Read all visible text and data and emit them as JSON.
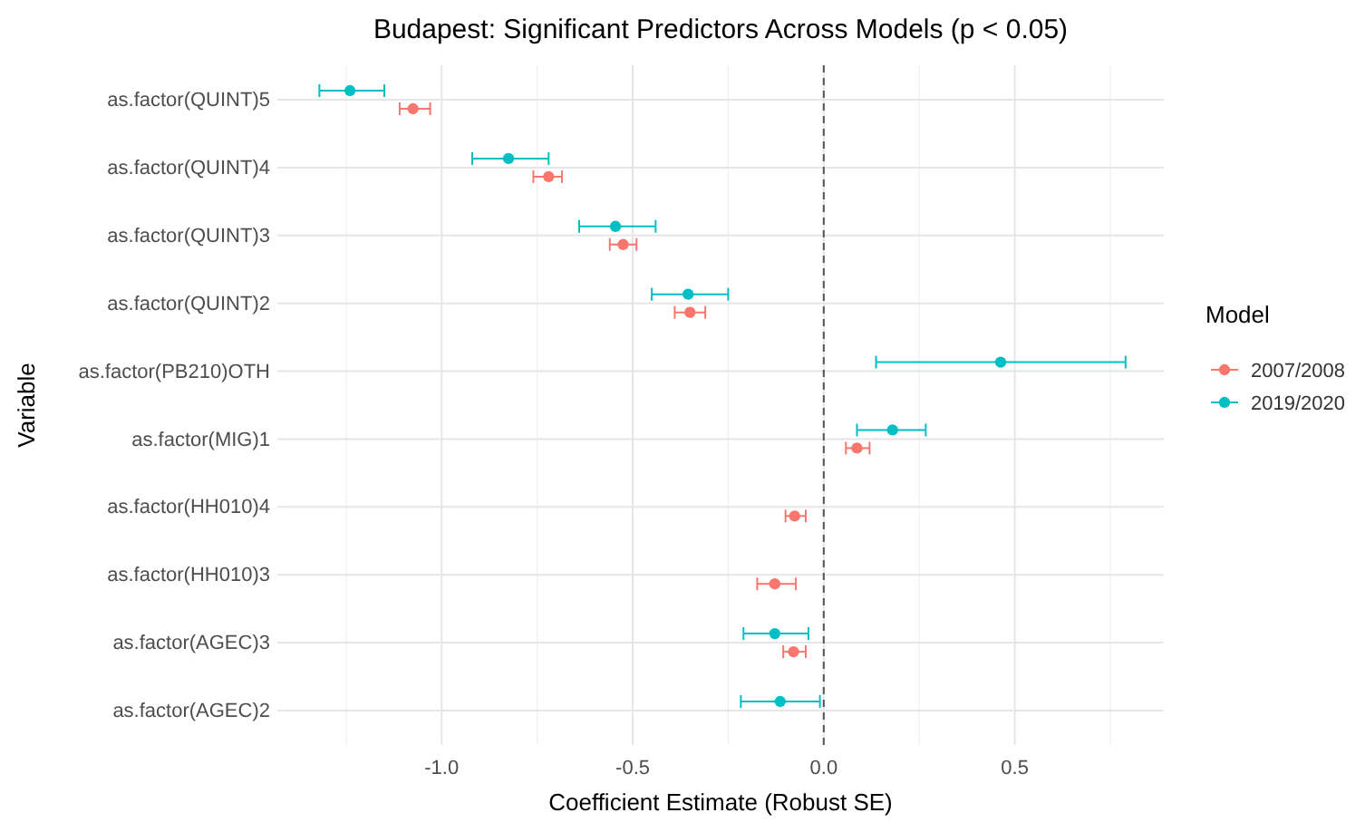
{
  "chart_data": {
    "type": "scatter",
    "orientation": "horizontal",
    "title": "Budapest: Significant Predictors Across Models (p < 0.05)",
    "xlabel": "Coefficient Estimate (Robust SE)",
    "ylabel": "Variable",
    "legend_title": "Model",
    "legend": "right",
    "grid": true,
    "marker": "circle",
    "categories": [
      "as.factor(QUINT)5",
      "as.factor(QUINT)4",
      "as.factor(QUINT)3",
      "as.factor(QUINT)2",
      "as.factor(PB210)OTH",
      "as.factor(MIG)1",
      "as.factor(HH010)4",
      "as.factor(HH010)3",
      "as.factor(AGEC)3",
      "as.factor(AGEC)2"
    ],
    "xlim": [
      -1.43,
      0.89
    ],
    "xticks": [
      {
        "value": -1,
        "label": "-1.0"
      },
      -0.5,
      {
        "value": 0,
        "label": "0.0"
      },
      0.5
    ],
    "ref_lines": [
      {
        "axis": "x",
        "value": 0,
        "line_style": "dashed",
        "color": "#555555"
      }
    ],
    "series": [
      {
        "name": "2007/2008",
        "color": "#f8766d",
        "values": [
          -1.075,
          -0.72,
          -0.525,
          -0.35,
          null,
          0.087,
          -0.076,
          -0.128,
          -0.079,
          null
        ],
        "errors": [
          [
            -1.11,
            -1.03
          ],
          [
            -0.76,
            -0.685
          ],
          [
            -0.56,
            -0.49
          ],
          [
            -0.39,
            -0.31
          ],
          null,
          [
            0.058,
            0.12
          ],
          [
            -0.1,
            -0.047
          ],
          [
            -0.174,
            -0.073
          ],
          [
            -0.106,
            -0.047
          ],
          null
        ]
      },
      {
        "name": "2019/2020",
        "color": "#00bfc4",
        "values": [
          -1.24,
          -0.825,
          -0.545,
          -0.355,
          0.463,
          0.18,
          null,
          null,
          -0.128,
          -0.114
        ],
        "errors": [
          [
            -1.32,
            -1.15
          ],
          [
            -0.92,
            -0.72
          ],
          [
            -0.64,
            -0.44
          ],
          [
            -0.45,
            -0.25
          ],
          [
            0.137,
            0.79
          ],
          [
            0.087,
            0.267
          ],
          null,
          null,
          [
            -0.21,
            -0.04
          ],
          [
            -0.217,
            -0.01
          ]
        ]
      }
    ]
  }
}
